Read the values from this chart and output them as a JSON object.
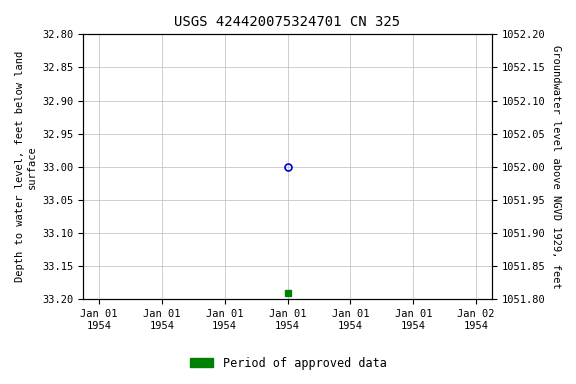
{
  "title": "USGS 424420075324701 CN 325",
  "ylabel_left": "Depth to water level, feet below land\nsurface",
  "ylabel_right": "Groundwater level above NGVD 1929, feet",
  "ylim_left_top": 32.8,
  "ylim_left_bottom": 33.2,
  "ylim_right_top": 1052.2,
  "ylim_right_bottom": 1051.8,
  "yticks_left": [
    32.8,
    32.85,
    32.9,
    32.95,
    33.0,
    33.05,
    33.1,
    33.15,
    33.2
  ],
  "yticks_right": [
    1052.2,
    1052.15,
    1052.1,
    1052.05,
    1052.0,
    1051.95,
    1051.9,
    1051.85,
    1051.8
  ],
  "data_blue_y": 33.0,
  "data_green_y": 33.19,
  "legend_label": "Period of approved data",
  "legend_color": "#008000",
  "blue_edge_color": "#0000cc",
  "background_color": "#ffffff",
  "grid_color": "#bbbbbb",
  "xtick_hours": [
    0,
    4,
    8,
    12,
    16,
    20,
    24
  ],
  "data_blue_hour": 12,
  "data_green_hour": 12
}
